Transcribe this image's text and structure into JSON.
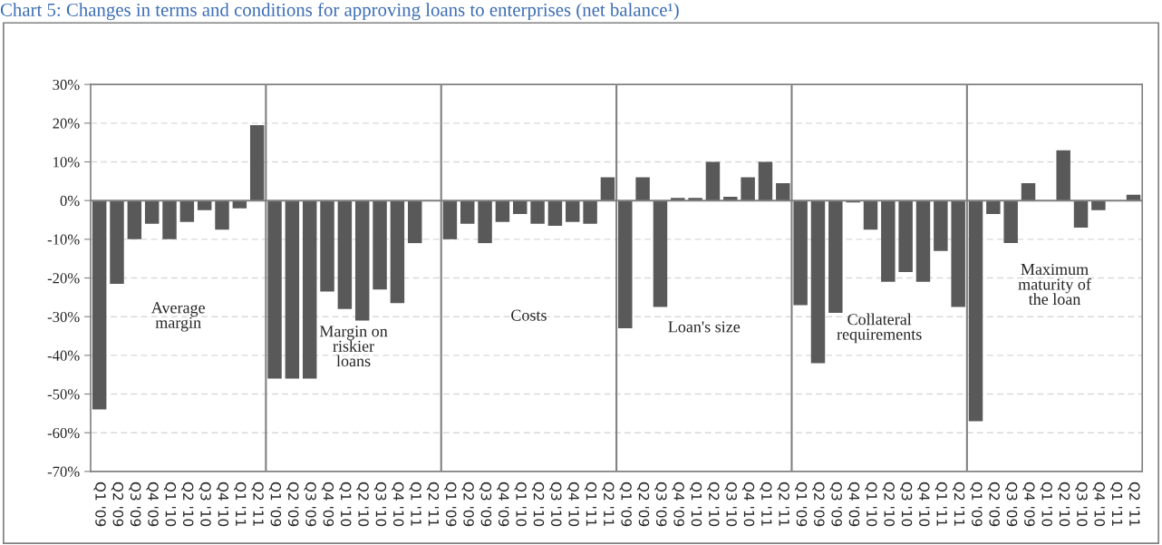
{
  "chart_data": {
    "type": "bar",
    "title": "Chart 5: Changes in terms and conditions for approving loans to enterprises (net balance¹)",
    "categories": [
      "Q1 '09",
      "Q2 '09",
      "Q3 '09",
      "Q4 '09",
      "Q1 '10",
      "Q2 '10",
      "Q3 '10",
      "Q4 '10",
      "Q1 '11",
      "Q2 '11",
      "Q1 '09",
      "Q2 '09",
      "Q3 '09",
      "Q4 '09",
      "Q1 '10",
      "Q2 '10",
      "Q3 '10",
      "Q4 '10",
      "Q1 '11",
      "Q2 '11",
      "Q1 '09",
      "Q2 '09",
      "Q3 '09",
      "Q4 '09",
      "Q1 '10",
      "Q2 '10",
      "Q3 '10",
      "Q4 '10",
      "Q1 '11",
      "Q2 '11",
      "Q1 '09",
      "Q2 '09",
      "Q3 '09",
      "Q4 '09",
      "Q1 '10",
      "Q2 '10",
      "Q3 '10",
      "Q4 '10",
      "Q1 '11",
      "Q2 '11",
      "Q1 '09",
      "Q2 '09",
      "Q3 '09",
      "Q4 '09",
      "Q1 '10",
      "Q2 '10",
      "Q3 '10",
      "Q4 '10",
      "Q1 '11",
      "Q2 '11",
      "Q1 '09",
      "Q2 '09",
      "Q3 '09",
      "Q4 '09",
      "Q1 '10",
      "Q2 '10",
      "Q3 '10",
      "Q4 '10",
      "Q1 '11",
      "Q2 '11"
    ],
    "values": [
      -54,
      -21.5,
      -10,
      -6,
      -10,
      -5.5,
      -2.5,
      -7.5,
      -2,
      19.5,
      -46,
      -46,
      -46,
      -23.5,
      -28,
      -31,
      -23,
      -26.5,
      -11,
      0,
      -10,
      -6,
      -11,
      -5.5,
      -3.5,
      -6,
      -6.5,
      -5.5,
      -6,
      6,
      -33,
      6,
      -27.5,
      0.7,
      0.7,
      10,
      1,
      6,
      10,
      4.5,
      -27,
      -42,
      -29,
      -0.5,
      -7.5,
      -21,
      -18.5,
      -21,
      -13,
      -27.5,
      -57,
      -3.5,
      -11,
      4.5,
      0,
      13,
      -7,
      -2.5,
      0,
      1.5
    ],
    "color": "#595959",
    "annotations": [
      "Average\nmargin",
      "Margin on\nriskier\nloans",
      "Costs",
      "Loan's size",
      "Collateral\nrequirements",
      "Maximum\nmaturity of\nthe loan"
    ],
    "ylim": [
      -70,
      30
    ],
    "yticks": [
      {
        "value": -70,
        "label": "-70%"
      },
      {
        "value": -60,
        "label": "-60%"
      },
      {
        "value": -50,
        "label": "-50%"
      },
      {
        "value": -40,
        "label": "-40%"
      },
      {
        "value": -30,
        "label": "-30%"
      },
      {
        "value": -20,
        "label": "-20%"
      },
      {
        "value": -10,
        "label": "-10%"
      },
      {
        "value": 0,
        "label": "0%"
      },
      {
        "value": 10,
        "label": "10%"
      },
      {
        "value": 20,
        "label": "20%"
      },
      {
        "value": 30,
        "label": "30%"
      }
    ],
    "grid": "y"
  }
}
